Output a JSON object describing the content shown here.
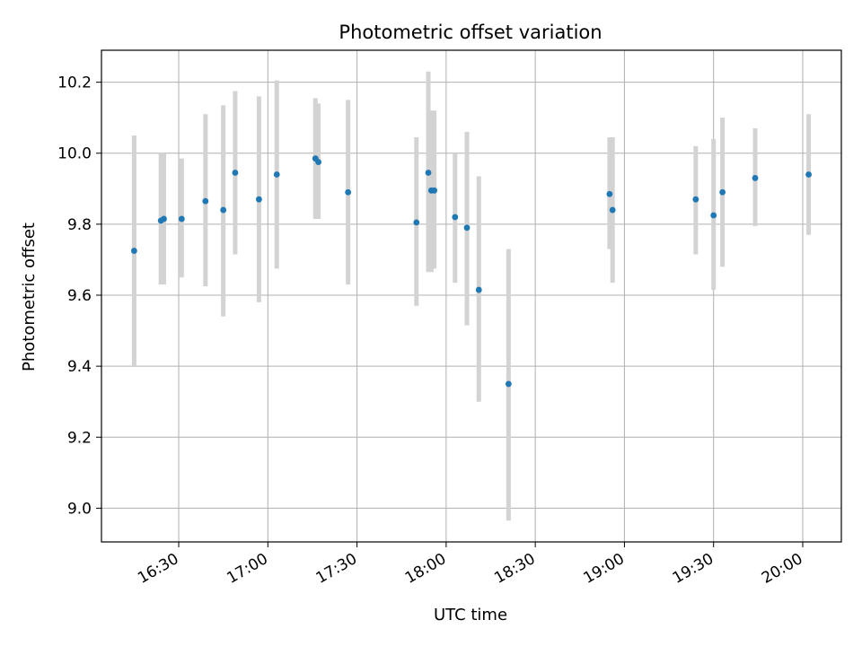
{
  "chart_data": {
    "type": "scatter",
    "title": "Photometric offset variation",
    "xlabel": "UTC time",
    "ylabel": "Photometric offset",
    "x_axis_kind": "time",
    "xlim": [
      "16:04",
      "20:13"
    ],
    "ylim": [
      8.905,
      10.29
    ],
    "x_ticks": [
      "16:30",
      "17:00",
      "17:30",
      "18:00",
      "18:30",
      "19:00",
      "19:30",
      "20:00"
    ],
    "y_ticks": [
      "9.0",
      "9.2",
      "9.4",
      "9.6",
      "9.8",
      "10.0",
      "10.2"
    ],
    "grid": true,
    "point_color": "#1f77b4",
    "errorbar_color": "#d3d3d3",
    "series": [
      {
        "points": [
          {
            "x": "16:15",
            "y": 9.725,
            "ylow": 9.4,
            "yhigh": 10.05
          },
          {
            "x": "16:24",
            "y": 9.81,
            "ylow": 9.63,
            "yhigh": 10.0
          },
          {
            "x": "16:25",
            "y": 9.815,
            "ylow": 9.63,
            "yhigh": 10.0
          },
          {
            "x": "16:31",
            "y": 9.815,
            "ylow": 9.65,
            "yhigh": 9.985
          },
          {
            "x": "16:39",
            "y": 9.865,
            "ylow": 9.625,
            "yhigh": 10.11
          },
          {
            "x": "16:45",
            "y": 9.84,
            "ylow": 9.54,
            "yhigh": 10.135
          },
          {
            "x": "16:49",
            "y": 9.945,
            "ylow": 9.715,
            "yhigh": 10.175
          },
          {
            "x": "16:57",
            "y": 9.87,
            "ylow": 9.58,
            "yhigh": 10.16
          },
          {
            "x": "17:03",
            "y": 9.94,
            "ylow": 9.675,
            "yhigh": 10.205
          },
          {
            "x": "17:16",
            "y": 9.985,
            "ylow": 9.815,
            "yhigh": 10.155
          },
          {
            "x": "17:17",
            "y": 9.975,
            "ylow": 9.815,
            "yhigh": 10.14
          },
          {
            "x": "17:27",
            "y": 9.89,
            "ylow": 9.63,
            "yhigh": 10.15
          },
          {
            "x": "17:50",
            "y": 9.805,
            "ylow": 9.57,
            "yhigh": 10.045
          },
          {
            "x": "17:54",
            "y": 9.945,
            "ylow": 9.665,
            "yhigh": 10.23
          },
          {
            "x": "17:55",
            "y": 9.895,
            "ylow": 9.665,
            "yhigh": 10.12
          },
          {
            "x": "17:56",
            "y": 9.895,
            "ylow": 9.675,
            "yhigh": 10.12
          },
          {
            "x": "18:03",
            "y": 9.82,
            "ylow": 9.635,
            "yhigh": 10.0
          },
          {
            "x": "18:07",
            "y": 9.79,
            "ylow": 9.515,
            "yhigh": 10.06
          },
          {
            "x": "18:11",
            "y": 9.615,
            "ylow": 9.3,
            "yhigh": 9.935
          },
          {
            "x": "18:21",
            "y": 9.35,
            "ylow": 8.965,
            "yhigh": 9.73
          },
          {
            "x": "18:55",
            "y": 9.885,
            "ylow": 9.73,
            "yhigh": 10.045
          },
          {
            "x": "18:56",
            "y": 9.84,
            "ylow": 9.635,
            "yhigh": 10.045
          },
          {
            "x": "19:24",
            "y": 9.87,
            "ylow": 9.715,
            "yhigh": 10.02
          },
          {
            "x": "19:30",
            "y": 9.825,
            "ylow": 9.615,
            "yhigh": 10.04
          },
          {
            "x": "19:33",
            "y": 9.89,
            "ylow": 9.68,
            "yhigh": 10.1
          },
          {
            "x": "19:44",
            "y": 9.93,
            "ylow": 9.795,
            "yhigh": 10.07
          },
          {
            "x": "20:02",
            "y": 9.94,
            "ylow": 9.77,
            "yhigh": 10.11
          }
        ]
      }
    ]
  }
}
